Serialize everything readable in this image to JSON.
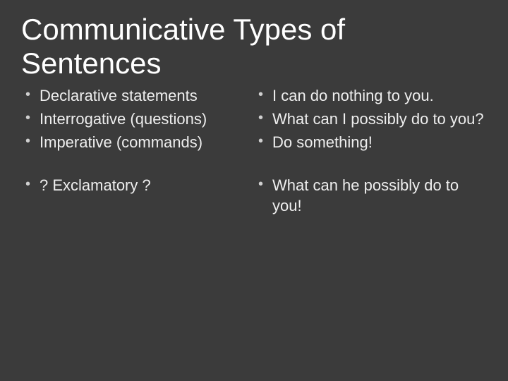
{
  "slide": {
    "title": "Communicative Types of Sentences",
    "left": [
      "Declarative statements",
      "Interrogative (questions)",
      "Imperative (commands)",
      "? Exclamatory ?"
    ],
    "right": [
      "I can do nothing to you.",
      "What can I possibly do to you?",
      "Do something!",
      "What can he possibly do to you!"
    ]
  },
  "style": {
    "background_color": "#3b3b3b",
    "text_color": "#ffffff",
    "bullet_color": "#cfcfcf",
    "title_fontsize_pt": 32,
    "body_fontsize_pt": 17,
    "font_family": "Segoe UI, Helvetica Neue, Arial, sans-serif"
  }
}
